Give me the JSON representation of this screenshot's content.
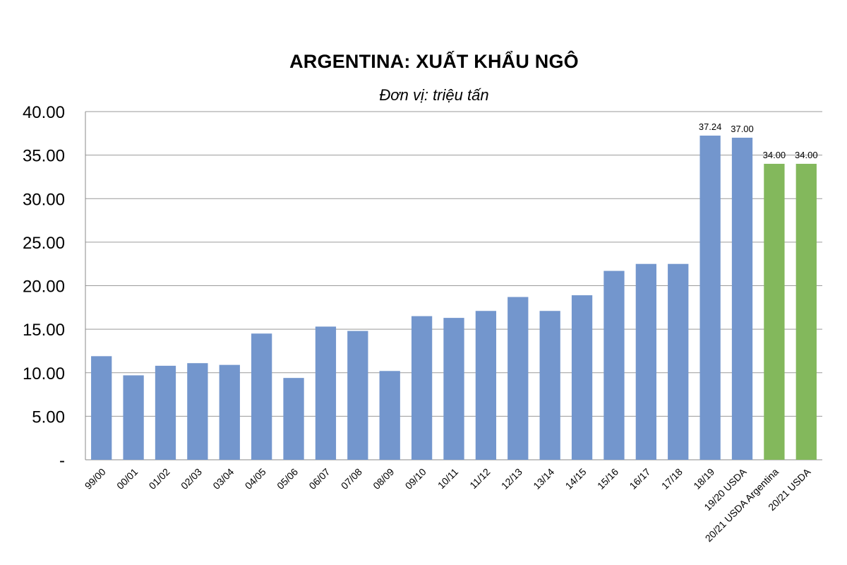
{
  "chart_data": {
    "type": "bar",
    "title": "ARGENTINA: XUẤT KHẨU NGÔ",
    "subtitle": "Đơn vị: triệu tấn",
    "categories": [
      "99/00",
      "00/01",
      "01/02",
      "02/03",
      "03/04",
      "04/05",
      "05/06",
      "06/07",
      "07/08",
      "08/09",
      "09/10",
      "10/11",
      "11/12",
      "12/13",
      "13/14",
      "14/15",
      "15/16",
      "16/17",
      "17/18",
      "18/19",
      "19/20 USDA",
      "20/21 USDA Argentina",
      "20/21 USDA"
    ],
    "values": [
      11.9,
      9.7,
      10.8,
      11.1,
      10.9,
      14.5,
      9.4,
      15.3,
      14.8,
      10.2,
      16.5,
      16.3,
      17.1,
      18.7,
      17.1,
      18.9,
      21.7,
      22.5,
      22.5,
      37.24,
      37.0,
      34.0,
      34.0
    ],
    "data_labels": [
      "",
      "",
      "",
      "",
      "",
      "",
      "",
      "",
      "",
      "",
      "",
      "",
      "",
      "",
      "",
      "",
      "",
      "",
      "",
      "37.24",
      "37.00",
      "34.00",
      "34.00"
    ],
    "bar_colors": [
      "#7396cd",
      "#7396cd",
      "#7396cd",
      "#7396cd",
      "#7396cd",
      "#7396cd",
      "#7396cd",
      "#7396cd",
      "#7396cd",
      "#7396cd",
      "#7396cd",
      "#7396cd",
      "#7396cd",
      "#7396cd",
      "#7396cd",
      "#7396cd",
      "#7396cd",
      "#7396cd",
      "#7396cd",
      "#7396cd",
      "#7396cd",
      "#83b85c",
      "#83b85c"
    ],
    "y_ticks": [
      "-",
      "5.00",
      "10.00",
      "15.00",
      "20.00",
      "25.00",
      "30.00",
      "35.00",
      "40.00"
    ],
    "ylim": [
      0,
      40
    ],
    "grid": true,
    "gridline_color": "#9a9a9a",
    "legend": "none"
  }
}
